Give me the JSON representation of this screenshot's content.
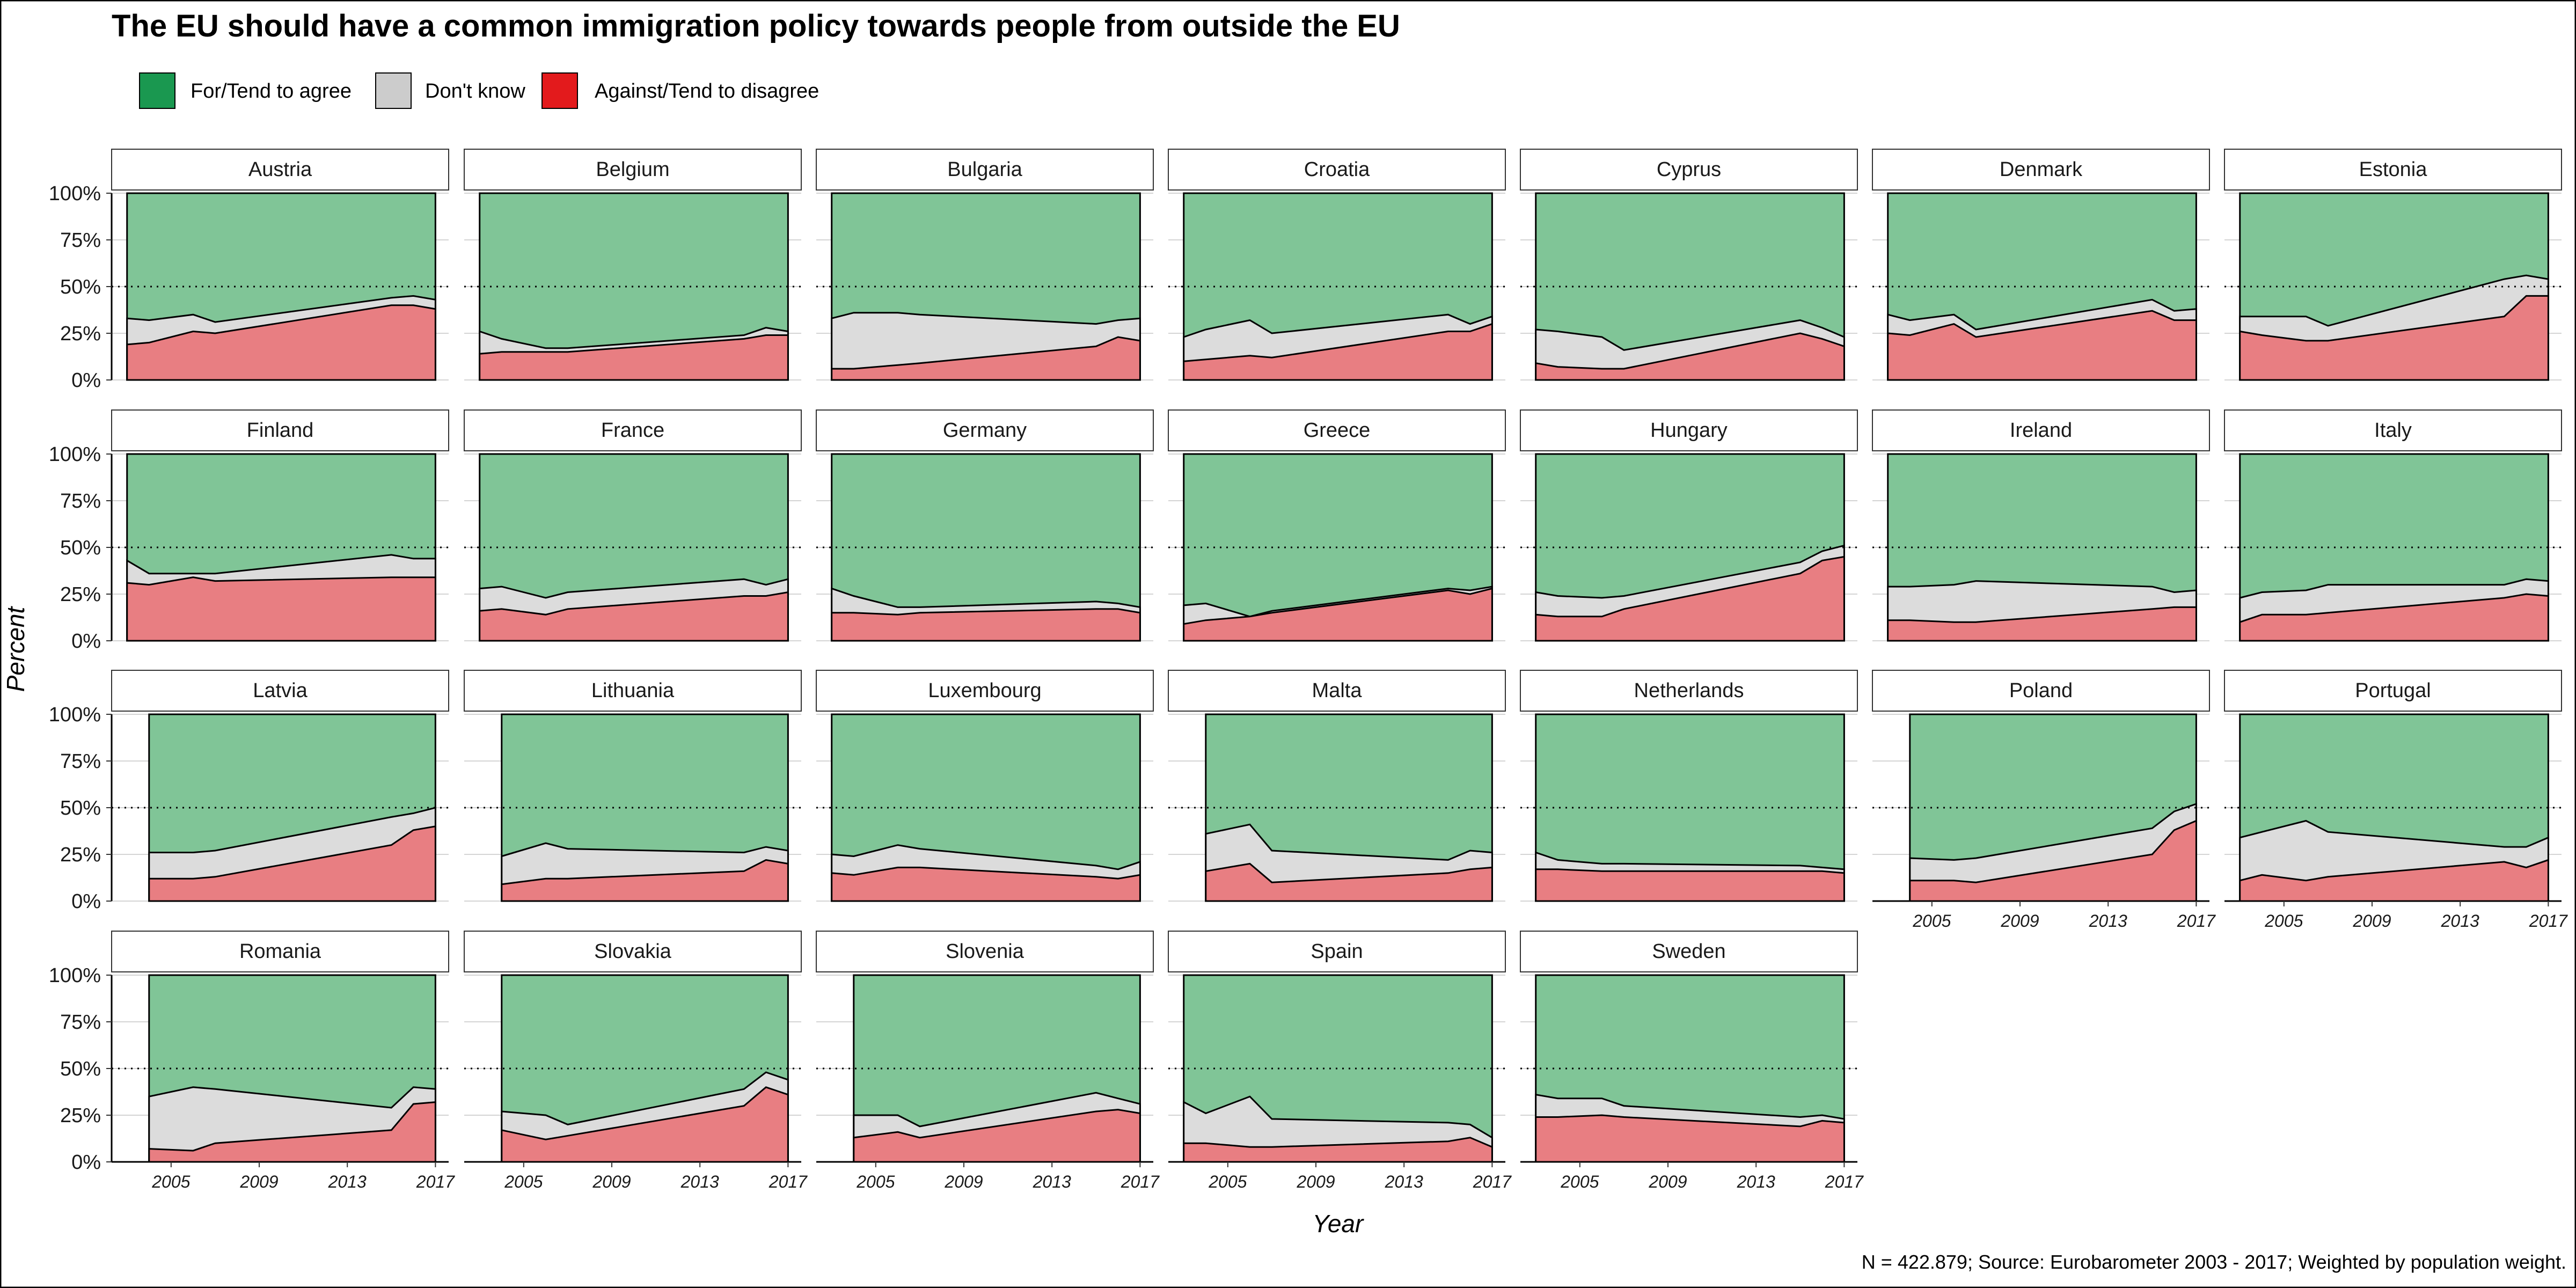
{
  "title": "The EU should have a common immigration policy towards people from outside the EU",
  "legend": [
    {
      "key": "agree",
      "label": "For/Tend to agree",
      "color": "#1a9850"
    },
    {
      "key": "dk",
      "label": "Don't know",
      "color": "#cccccc"
    },
    {
      "key": "disagree",
      "label": "Against/Tend to disagree",
      "color": "#e31a1c"
    }
  ],
  "fill_colors": {
    "agree": "#80c597",
    "dk": "#dcdcdc",
    "disagree": "#e87e82"
  },
  "y_axis_title": "Percent",
  "x_axis_title": "Year",
  "y_ticks": [
    "0%",
    "25%",
    "50%",
    "75%",
    "100%"
  ],
  "x_ticks": [
    "2005",
    "2009",
    "2013",
    "2017"
  ],
  "caption": "N = 422.879; Source: Eurobarometer 2003 - 2017; Weighted by population weight.",
  "chart_data": {
    "type": "area",
    "stacking": "100% stacked area, faceted small multiples (7 columns)",
    "reference_line": 50,
    "xlim": [
      2002.3,
      2017.6
    ],
    "ylim": [
      0,
      100
    ],
    "series_order": [
      "Against/Tend to disagree",
      "Don't know",
      "For/Tend to agree"
    ],
    "panels": [
      {
        "country": "Austria",
        "x": [
          2003,
          2004,
          2006,
          2007,
          2015,
          2016,
          2017
        ],
        "disagree": [
          19,
          20,
          26,
          25,
          40,
          40,
          38
        ],
        "dk": [
          14,
          12,
          9,
          6,
          4,
          5,
          5
        ]
      },
      {
        "country": "Belgium",
        "x": [
          2003,
          2004,
          2006,
          2007,
          2015,
          2016,
          2017
        ],
        "disagree": [
          14,
          15,
          15,
          15,
          22,
          24,
          24
        ],
        "dk": [
          12,
          7,
          2,
          2,
          2,
          4,
          2
        ]
      },
      {
        "country": "Bulgaria",
        "x": [
          2003,
          2004,
          2006,
          2007,
          2015,
          2016,
          2017
        ],
        "disagree": [
          6,
          6,
          8,
          9,
          18,
          23,
          21
        ],
        "dk": [
          27,
          30,
          28,
          26,
          12,
          9,
          12
        ]
      },
      {
        "country": "Croatia",
        "x": [
          2003,
          2004,
          2006,
          2007,
          2015,
          2016,
          2017
        ],
        "disagree": [
          10,
          11,
          13,
          12,
          26,
          26,
          30
        ],
        "dk": [
          13,
          16,
          19,
          13,
          9,
          4,
          4
        ]
      },
      {
        "country": "Cyprus",
        "x": [
          2003,
          2004,
          2006,
          2007,
          2015,
          2016,
          2017
        ],
        "disagree": [
          9,
          7,
          6,
          6,
          25,
          22,
          18
        ],
        "dk": [
          18,
          19,
          17,
          10,
          7,
          6,
          5
        ]
      },
      {
        "country": "Denmark",
        "x": [
          2003,
          2004,
          2006,
          2007,
          2015,
          2016,
          2017
        ],
        "disagree": [
          25,
          24,
          30,
          23,
          37,
          32,
          32
        ],
        "dk": [
          10,
          8,
          5,
          4,
          6,
          5,
          6
        ]
      },
      {
        "country": "Estonia",
        "x": [
          2003,
          2004,
          2006,
          2007,
          2015,
          2016,
          2017
        ],
        "disagree": [
          26,
          24,
          21,
          21,
          34,
          45,
          45
        ],
        "dk": [
          8,
          10,
          13,
          8,
          20,
          11,
          9
        ]
      },
      {
        "country": "Finland",
        "x": [
          2003,
          2004,
          2006,
          2007,
          2015,
          2016,
          2017
        ],
        "disagree": [
          31,
          30,
          34,
          32,
          34,
          34,
          34
        ],
        "dk": [
          12,
          6,
          2,
          4,
          12,
          10,
          10
        ]
      },
      {
        "country": "France",
        "x": [
          2003,
          2004,
          2006,
          2007,
          2015,
          2016,
          2017
        ],
        "disagree": [
          16,
          17,
          14,
          17,
          24,
          24,
          26
        ],
        "dk": [
          12,
          12,
          9,
          9,
          9,
          6,
          7
        ]
      },
      {
        "country": "Germany",
        "x": [
          2003,
          2004,
          2006,
          2007,
          2015,
          2016,
          2017
        ],
        "disagree": [
          15,
          15,
          14,
          15,
          17,
          17,
          15
        ],
        "dk": [
          13,
          9,
          4,
          3,
          4,
          3,
          3
        ]
      },
      {
        "country": "Greece",
        "x": [
          2003,
          2004,
          2006,
          2007,
          2015,
          2016,
          2017
        ],
        "disagree": [
          9,
          11,
          13,
          15,
          27,
          25,
          28
        ],
        "dk": [
          10,
          9,
          0,
          1,
          1,
          2,
          1
        ]
      },
      {
        "country": "Hungary",
        "x": [
          2003,
          2004,
          2006,
          2007,
          2015,
          2016,
          2017
        ],
        "disagree": [
          14,
          13,
          13,
          17,
          36,
          43,
          45
        ],
        "dk": [
          12,
          11,
          10,
          7,
          6,
          5,
          6
        ]
      },
      {
        "country": "Ireland",
        "x": [
          2003,
          2004,
          2006,
          2007,
          2015,
          2016,
          2017
        ],
        "disagree": [
          11,
          11,
          10,
          10,
          17,
          18,
          18
        ],
        "dk": [
          18,
          18,
          20,
          22,
          12,
          8,
          9
        ]
      },
      {
        "country": "Italy",
        "x": [
          2003,
          2004,
          2006,
          2007,
          2015,
          2016,
          2017
        ],
        "disagree": [
          10,
          14,
          14,
          15,
          23,
          25,
          24
        ],
        "dk": [
          13,
          12,
          13,
          15,
          7,
          8,
          8
        ]
      },
      {
        "country": "Latvia",
        "x": [
          2004,
          2006,
          2007,
          2015,
          2016,
          2017
        ],
        "disagree": [
          12,
          12,
          13,
          30,
          38,
          40
        ],
        "dk": [
          14,
          14,
          14,
          15,
          9,
          10
        ]
      },
      {
        "country": "Lithuania",
        "x": [
          2004,
          2006,
          2007,
          2015,
          2016,
          2017
        ],
        "disagree": [
          9,
          12,
          12,
          16,
          22,
          20
        ],
        "dk": [
          15,
          19,
          16,
          10,
          7,
          7
        ]
      },
      {
        "country": "Luxembourg",
        "x": [
          2003,
          2004,
          2006,
          2007,
          2015,
          2016,
          2017
        ],
        "disagree": [
          15,
          14,
          18,
          18,
          13,
          12,
          14
        ],
        "dk": [
          10,
          10,
          12,
          10,
          6,
          5,
          7
        ]
      },
      {
        "country": "Malta",
        "x": [
          2004,
          2006,
          2007,
          2015,
          2016,
          2017
        ],
        "disagree": [
          16,
          20,
          10,
          15,
          17,
          18
        ],
        "dk": [
          20,
          21,
          17,
          7,
          10,
          8
        ]
      },
      {
        "country": "Netherlands",
        "x": [
          2003,
          2004,
          2006,
          2007,
          2015,
          2016,
          2017
        ],
        "disagree": [
          17,
          17,
          16,
          16,
          16,
          16,
          15
        ],
        "dk": [
          9,
          5,
          4,
          4,
          3,
          2,
          2
        ]
      },
      {
        "country": "Poland",
        "x": [
          2004,
          2006,
          2007,
          2015,
          2016,
          2017
        ],
        "disagree": [
          11,
          11,
          10,
          25,
          38,
          43
        ],
        "dk": [
          12,
          11,
          13,
          14,
          10,
          9
        ]
      },
      {
        "country": "Portugal",
        "x": [
          2003,
          2004,
          2006,
          2007,
          2015,
          2016,
          2017
        ],
        "disagree": [
          11,
          14,
          11,
          13,
          21,
          18,
          22
        ],
        "dk": [
          23,
          23,
          32,
          24,
          8,
          11,
          12
        ]
      },
      {
        "country": "Romania",
        "x": [
          2004,
          2006,
          2007,
          2015,
          2016,
          2017
        ],
        "disagree": [
          7,
          6,
          10,
          17,
          31,
          32
        ],
        "dk": [
          28,
          34,
          29,
          12,
          9,
          7
        ]
      },
      {
        "country": "Slovakia",
        "x": [
          2004,
          2006,
          2007,
          2015,
          2016,
          2017
        ],
        "disagree": [
          17,
          12,
          14,
          30,
          40,
          36
        ],
        "dk": [
          10,
          13,
          6,
          9,
          8,
          8
        ]
      },
      {
        "country": "Slovenia",
        "x": [
          2004,
          2006,
          2007,
          2015,
          2016,
          2017
        ],
        "disagree": [
          13,
          16,
          13,
          27,
          28,
          26
        ],
        "dk": [
          12,
          9,
          6,
          10,
          6,
          5
        ]
      },
      {
        "country": "Spain",
        "x": [
          2003,
          2004,
          2006,
          2007,
          2015,
          2016,
          2017
        ],
        "disagree": [
          10,
          10,
          8,
          8,
          11,
          13,
          8
        ],
        "dk": [
          22,
          16,
          27,
          15,
          10,
          7,
          5
        ]
      },
      {
        "country": "Sweden",
        "x": [
          2003,
          2004,
          2006,
          2007,
          2015,
          2016,
          2017
        ],
        "disagree": [
          24,
          24,
          25,
          24,
          19,
          22,
          21
        ],
        "dk": [
          12,
          10,
          9,
          6,
          5,
          3,
          2
        ]
      }
    ]
  }
}
